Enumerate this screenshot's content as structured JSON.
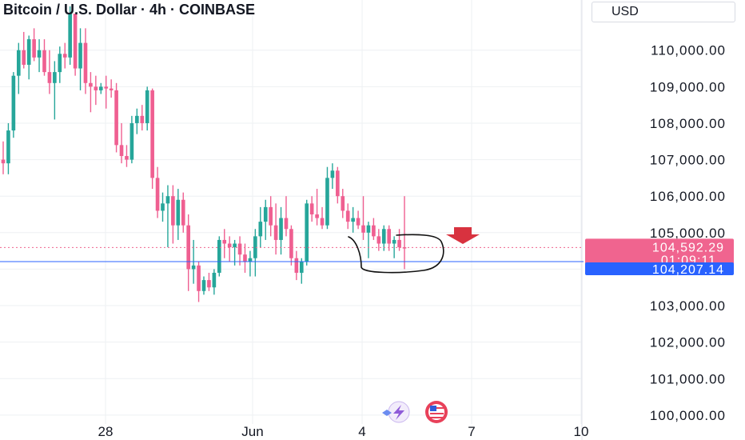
{
  "header": {
    "title": "Bitcoin / U.S. Dollar · 4h · COINBASE",
    "currency": "USD"
  },
  "colors": {
    "up": "#26a69a",
    "down": "#ef5f91",
    "current_price": "#f0648f",
    "reference_line": "#2962ff",
    "arrow": "#d8323f",
    "grid": "#eef0f3"
  },
  "icons": {
    "logo_left": "lightning-icon",
    "logo_right": "us-flag-icon",
    "arrow": "arrow-down-icon"
  },
  "chart_data": {
    "type": "candlestick",
    "y_axis": {
      "min": 99800,
      "max": 111200,
      "tick_labels": [
        "110,000.00",
        "109,000.00",
        "108,000.00",
        "107,000.00",
        "106,000.00",
        "105,000.00",
        "103,000.00",
        "102,000.00",
        "101,000.00",
        "100,000.00"
      ],
      "tick_values": [
        110000,
        109000,
        108000,
        107000,
        106000,
        105000,
        103000,
        102000,
        101000,
        100000
      ]
    },
    "x_axis": {
      "tick_labels": [
        "28",
        "Jun",
        "4",
        "7",
        "10"
      ]
    },
    "current_price": {
      "label": "104,592.29",
      "countdown": "01:09:11",
      "value": 104592.29
    },
    "reference_line": {
      "label": "104,207.14",
      "value": 104207.14
    },
    "candles": [
      [
        107000,
        107500,
        106600,
        106900
      ],
      [
        106900,
        108000,
        106600,
        107800
      ],
      [
        107800,
        109400,
        107600,
        109300
      ],
      [
        109300,
        110200,
        108800,
        110000
      ],
      [
        110000,
        110500,
        109500,
        109600
      ],
      [
        109600,
        110400,
        109200,
        110300
      ],
      [
        110300,
        110600,
        109700,
        109800
      ],
      [
        109800,
        110300,
        109400,
        110000
      ],
      [
        110000,
        110300,
        109300,
        109400
      ],
      [
        109400,
        110000,
        108800,
        109100
      ],
      [
        109100,
        109700,
        108100,
        109400
      ],
      [
        109400,
        110100,
        109100,
        109900
      ],
      [
        109900,
        110200,
        109500,
        109800
      ],
      [
        109800,
        111200,
        109600,
        111000
      ],
      [
        111000,
        111000,
        109300,
        109500
      ],
      [
        109500,
        110600,
        108900,
        110200
      ],
      [
        110200,
        110600,
        108800,
        109100
      ],
      [
        109100,
        109400,
        108300,
        109000
      ],
      [
        109000,
        109300,
        108500,
        108900
      ],
      [
        108900,
        109100,
        108800,
        109000
      ],
      [
        109000,
        109300,
        108400,
        108950
      ],
      [
        108950,
        109200,
        108700,
        108900
      ],
      [
        108900,
        109100,
        107200,
        107400
      ],
      [
        107400,
        108000,
        106900,
        107100
      ],
      [
        107100,
        107400,
        106800,
        107000
      ],
      [
        107000,
        108200,
        106900,
        108000
      ],
      [
        108000,
        108400,
        107700,
        108200
      ],
      [
        108200,
        108500,
        107800,
        108000
      ],
      [
        108000,
        109000,
        107800,
        108900
      ],
      [
        108900,
        108950,
        106200,
        106500
      ],
      [
        106500,
        106800,
        105400,
        105600
      ],
      [
        105600,
        106100,
        105300,
        105800
      ],
      [
        105800,
        106300,
        104600,
        106000
      ],
      [
        106000,
        106300,
        104700,
        105200
      ],
      [
        105200,
        106200,
        104800,
        105900
      ],
      [
        105900,
        106100,
        105000,
        105200
      ],
      [
        105200,
        105500,
        103400,
        104000
      ],
      [
        104000,
        104800,
        103600,
        104100
      ],
      [
        104100,
        104200,
        103100,
        103400
      ],
      [
        103400,
        103800,
        103300,
        103700
      ],
      [
        103700,
        103900,
        103400,
        103500
      ],
      [
        103500,
        104000,
        103300,
        103900
      ],
      [
        103900,
        104900,
        103800,
        104800
      ],
      [
        104800,
        105100,
        104300,
        104700
      ],
      [
        104700,
        104900,
        104200,
        104600
      ],
      [
        104600,
        104800,
        104100,
        104700
      ],
      [
        104700,
        104900,
        104100,
        104400
      ],
      [
        104400,
        104700,
        103900,
        104200
      ],
      [
        104200,
        104500,
        103800,
        104300
      ],
      [
        104300,
        105100,
        103800,
        104900
      ],
      [
        104900,
        105700,
        104600,
        105300
      ],
      [
        105300,
        105900,
        104800,
        105700
      ],
      [
        105700,
        106000,
        104900,
        105200
      ],
      [
        105200,
        105800,
        104400,
        104800
      ],
      [
        104800,
        105700,
        104400,
        105400
      ],
      [
        105400,
        106000,
        104900,
        105100
      ],
      [
        105100,
        105200,
        104100,
        104300
      ],
      [
        104300,
        104500,
        103700,
        103900
      ],
      [
        103900,
        104300,
        103600,
        104200
      ],
      [
        104200,
        105900,
        104100,
        105800
      ],
      [
        105800,
        106000,
        105300,
        105500
      ],
      [
        105500,
        106200,
        105200,
        105400
      ],
      [
        105400,
        105700,
        105100,
        105200
      ],
      [
        105200,
        106800,
        105100,
        106500
      ],
      [
        106500,
        106900,
        106200,
        106700
      ],
      [
        106700,
        106800,
        105800,
        106000
      ],
      [
        106000,
        106200,
        105400,
        105600
      ],
      [
        105600,
        105800,
        105100,
        105300
      ],
      [
        105300,
        105700,
        105000,
        105400
      ],
      [
        105400,
        105600,
        105100,
        105200
      ],
      [
        105200,
        106000,
        104800,
        105000
      ],
      [
        105000,
        105300,
        104300,
        105200
      ],
      [
        105200,
        105400,
        104800,
        104900
      ],
      [
        104900,
        105100,
        104500,
        104700
      ],
      [
        104700,
        105200,
        104500,
        105100
      ],
      [
        105100,
        105200,
        104500,
        104700
      ],
      [
        104700,
        104900,
        104300,
        104800
      ],
      [
        104800,
        105100,
        104500,
        104600
      ],
      [
        104600,
        106000,
        104000,
        104592
      ]
    ]
  }
}
